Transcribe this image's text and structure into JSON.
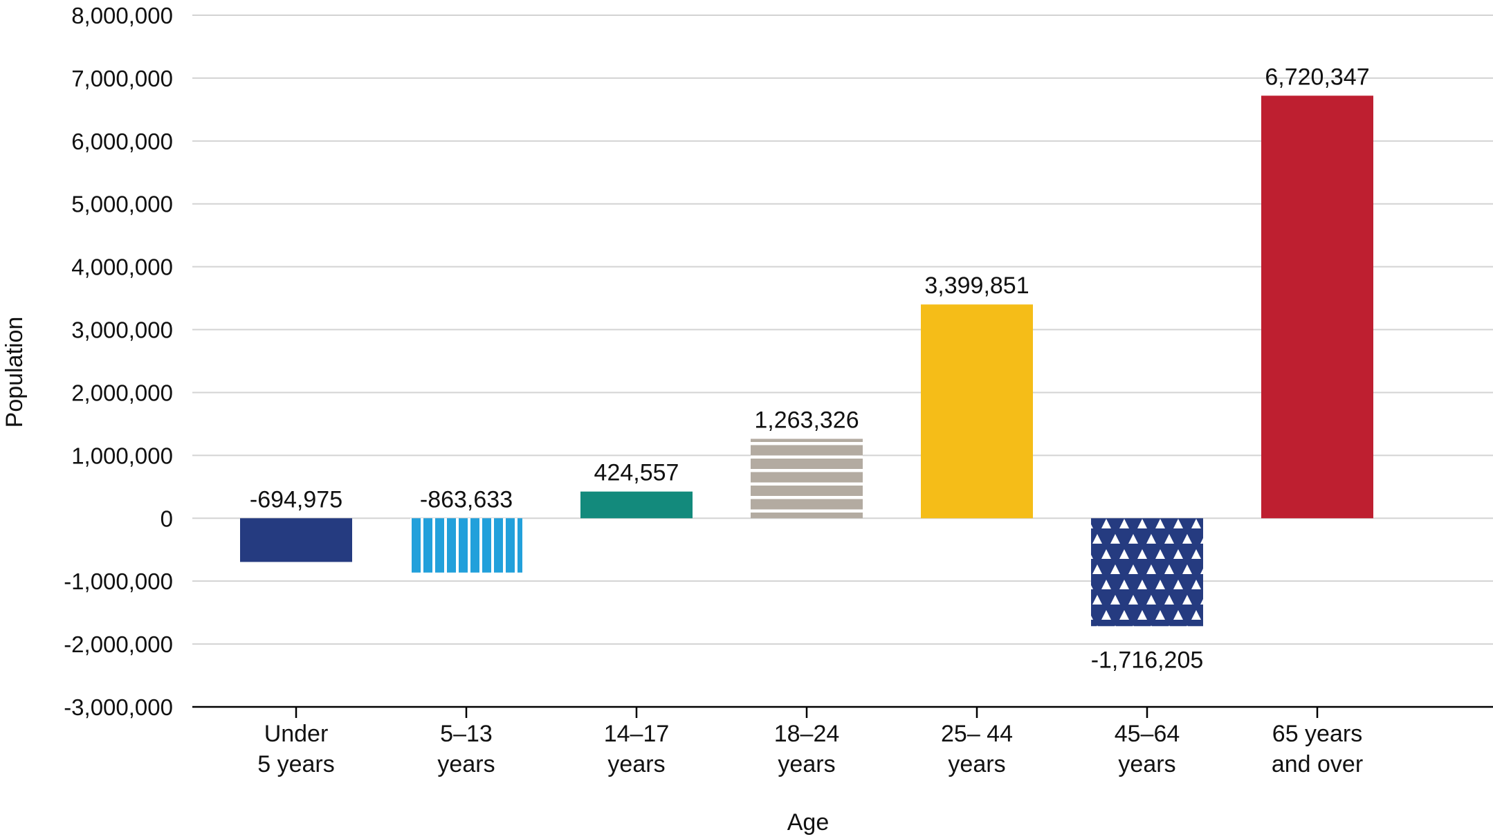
{
  "chart_data": {
    "type": "bar",
    "xlabel": "Age",
    "ylabel": "Population",
    "ylim": [
      -3000000,
      8000000
    ],
    "yticks": [
      "8,000,000",
      "7,000,000",
      "6,000,000",
      "5,000,000",
      "4,000,000",
      "3,000,000",
      "2,000,000",
      "1,000,000",
      "0",
      "-1,000,000",
      "-2,000,000",
      "-3,000,000"
    ],
    "ytick_values": [
      8000000,
      7000000,
      6000000,
      5000000,
      4000000,
      3000000,
      2000000,
      1000000,
      0,
      -1000000,
      -2000000,
      -3000000
    ],
    "grid": true,
    "categories": [
      [
        "Under",
        "5 years"
      ],
      [
        "5–13",
        "years"
      ],
      [
        "14–17",
        "years"
      ],
      [
        "18–24",
        "years"
      ],
      [
        "25– 44",
        "years"
      ],
      [
        "45–64",
        "years"
      ],
      [
        "65 years",
        "and over"
      ]
    ],
    "values": [
      -694975,
      -863633,
      424557,
      1263326,
      3399851,
      -1716205,
      6720347
    ],
    "data_labels": [
      "-694,975",
      "-863,633",
      "424,557",
      "1,263,326",
      "3,399,851",
      "-1,716,205",
      "6,720,347"
    ],
    "bar_styles": [
      {
        "color": "#253b80",
        "pattern": "solid"
      },
      {
        "color": "#22a0db",
        "pattern": "vertical-stripes"
      },
      {
        "color": "#138a7c",
        "pattern": "solid"
      },
      {
        "color": "#b3aba1",
        "pattern": "horizontal-stripes"
      },
      {
        "color": "#f5bd18",
        "pattern": "solid"
      },
      {
        "color": "#253b80",
        "pattern": "triangles"
      },
      {
        "color": "#be1f30",
        "pattern": "solid"
      }
    ]
  }
}
